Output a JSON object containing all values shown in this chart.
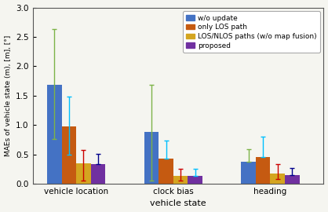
{
  "categories": [
    "vehicle location",
    "clock bias",
    "heading"
  ],
  "bar_labels": [
    "w/o update",
    "only LOS path",
    "LOS/NLOS paths (w/o map fusion)",
    "proposed"
  ],
  "bar_colors": [
    "#4472c4",
    "#c55a11",
    "#d4a520",
    "#7030a0"
  ],
  "bar_values": [
    [
      1.68,
      0.97,
      0.35,
      0.33
    ],
    [
      0.88,
      0.43,
      0.13,
      0.13
    ],
    [
      0.37,
      0.45,
      0.18,
      0.15
    ]
  ],
  "error_low": [
    [
      0.92,
      0.48,
      0.3,
      0.0
    ],
    [
      0.82,
      0.0,
      0.08,
      0.0
    ],
    [
      0.0,
      0.0,
      0.1,
      0.0
    ]
  ],
  "error_high": [
    [
      0.95,
      0.52,
      0.22,
      0.18
    ],
    [
      0.8,
      0.3,
      0.12,
      0.12
    ],
    [
      0.22,
      0.35,
      0.15,
      0.12
    ]
  ],
  "error_colors": [
    [
      "#7db348",
      "#00bfff",
      "#cc0000",
      "#00008b"
    ],
    [
      "#7db348",
      "#00bfff",
      "#cc0000",
      "#00bfff"
    ],
    [
      "#7db348",
      "#00bfff",
      "#cc0000",
      "#00008b"
    ]
  ],
  "ylabel": "MAEs of vehicle state (m), [m], [°]",
  "xlabel": "vehicle state",
  "ylim": [
    0,
    3.0
  ],
  "yticks": [
    0,
    0.5,
    1.0,
    1.5,
    2.0,
    2.5,
    3.0
  ],
  "background_color": "#f5f5f0",
  "legend_fontsize": 6.5,
  "axis_fontsize": 8,
  "tick_fontsize": 7.5,
  "bar_width": 0.15,
  "group_positions": [
    0.45,
    1.45,
    2.45
  ]
}
